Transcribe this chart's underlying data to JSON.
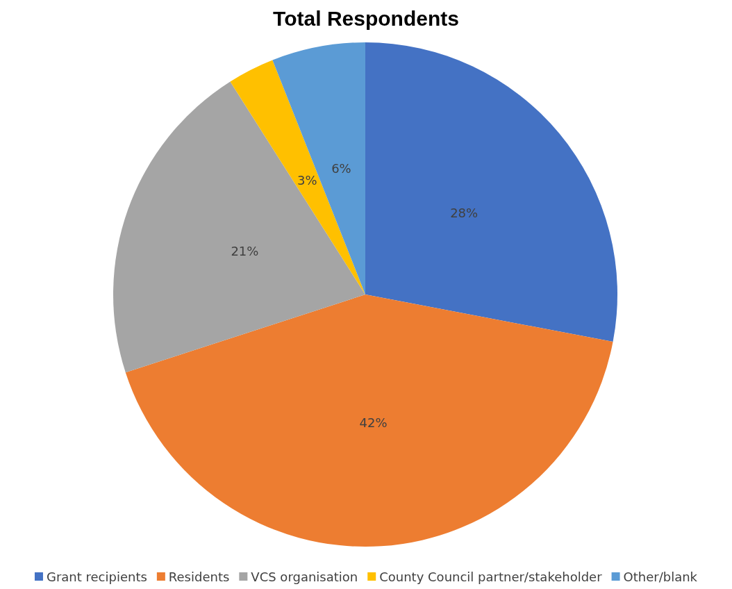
{
  "chart_data": {
    "type": "pie",
    "title": "Total Respondents",
    "categories": [
      "Grant recipients",
      "Residents",
      "VCS organisation",
      "County Council partner/stakeholder",
      "Other/blank"
    ],
    "values": [
      28,
      42,
      21,
      3,
      6
    ],
    "value_labels": [
      "28%",
      "42%",
      "21%",
      "3%",
      "6%"
    ],
    "colors": [
      "#4472c4",
      "#ed7d31",
      "#a5a5a5",
      "#ffc000",
      "#5b9bd5"
    ],
    "legend": "bottom"
  }
}
